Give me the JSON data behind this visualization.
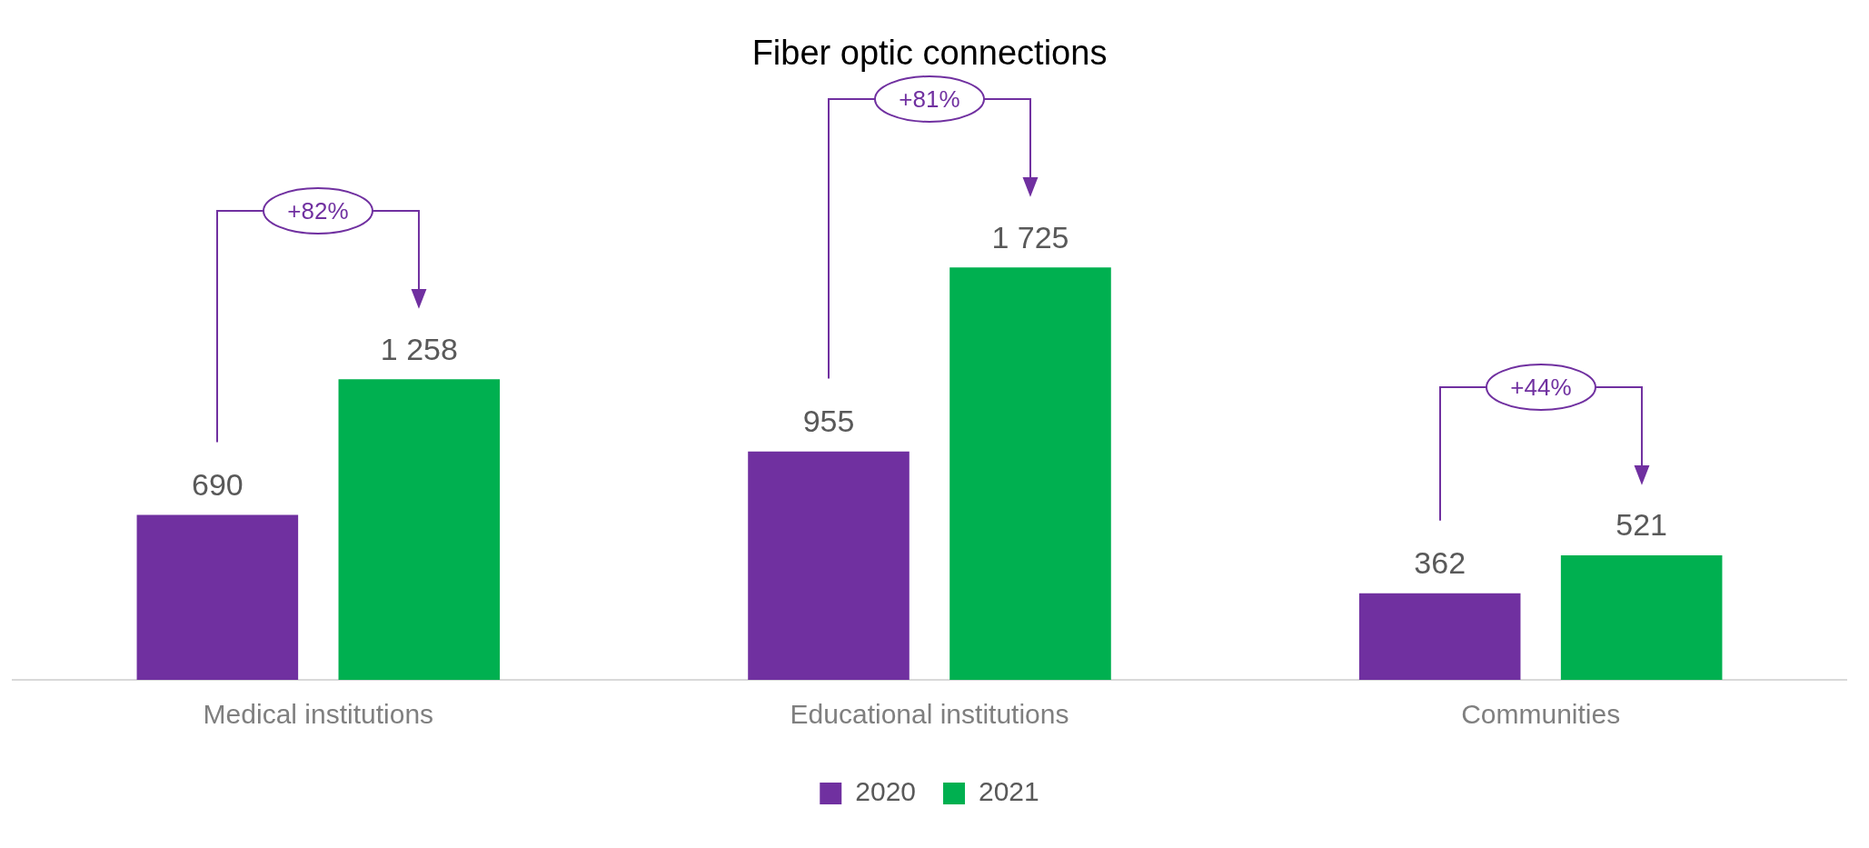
{
  "chart_data": {
    "type": "bar",
    "title": "Fiber optic connections",
    "categories": [
      "Medical institutions",
      "Educational institutions",
      "Communities"
    ],
    "series": [
      {
        "name": "2020",
        "color": "#7030a0",
        "values": [
          690,
          955,
          362
        ],
        "value_labels": [
          "690",
          "955",
          "362"
        ]
      },
      {
        "name": "2021",
        "color": "#00b050",
        "values": [
          1258,
          1725,
          521
        ],
        "value_labels": [
          "1 258",
          "1 725",
          "521"
        ]
      }
    ],
    "annotations": [
      "+82%",
      "+81%",
      "+44%"
    ],
    "legend": "bottom",
    "grid": false,
    "tick_labels": "x"
  }
}
